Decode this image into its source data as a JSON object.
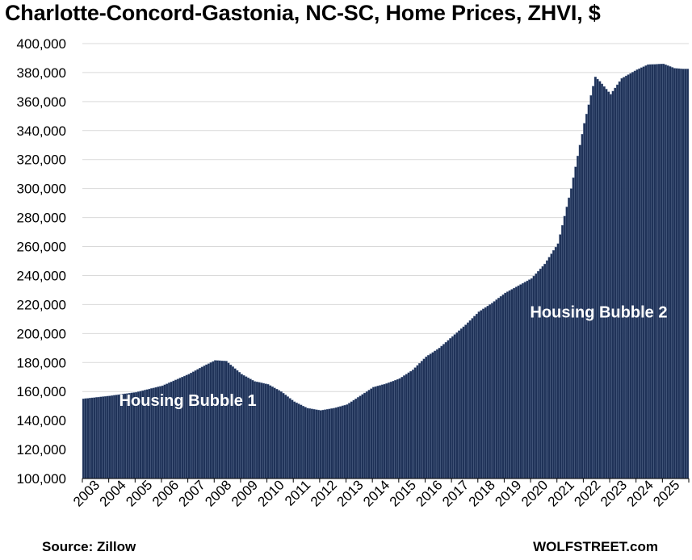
{
  "title": "Charlotte-Concord-Gastonia, NC-SC, Home Prices, ZHVI, $",
  "source": "Source: Zillow",
  "credit": "WOLFSTREET.com",
  "colors": {
    "bar": "#1f3258",
    "bar_gap": "#6a7ea0",
    "grid": "#d9d9d9"
  },
  "chart_data": {
    "type": "bar",
    "frequency": "monthly",
    "x_start": "2003-01",
    "x_end": "2025-12",
    "ylim": [
      100000,
      400000
    ],
    "yticks": [
      100000,
      120000,
      140000,
      160000,
      180000,
      200000,
      220000,
      240000,
      260000,
      280000,
      300000,
      320000,
      340000,
      360000,
      380000,
      400000
    ],
    "ytick_labels": [
      "100,000",
      "120,000",
      "140,000",
      "160,000",
      "180,000",
      "200,000",
      "220,000",
      "240,000",
      "260,000",
      "280,000",
      "300,000",
      "320,000",
      "340,000",
      "360,000",
      "380,000",
      "400,000"
    ],
    "xtick_labels": [
      "2003",
      "2004",
      "2005",
      "2006",
      "2007",
      "2008",
      "2009",
      "2010",
      "2011",
      "2012",
      "2013",
      "2014",
      "2015",
      "2016",
      "2017",
      "2018",
      "2019",
      "2020",
      "2021",
      "2022",
      "2023",
      "2024",
      "2025"
    ],
    "grid": "horizontal",
    "annotations": [
      {
        "text": "Housing Bubble 1",
        "x": "2007-01",
        "y": 150000
      },
      {
        "text": "Housing Bubble 2",
        "x": "2022-08",
        "y": 211000
      }
    ],
    "anchors": [
      [
        "2003-01",
        155000
      ],
      [
        "2004-01",
        157000
      ],
      [
        "2005-01",
        159500
      ],
      [
        "2006-01",
        164000
      ],
      [
        "2007-01",
        172000
      ],
      [
        "2007-07",
        177000
      ],
      [
        "2008-01",
        181500
      ],
      [
        "2008-06",
        181000
      ],
      [
        "2009-01",
        172000
      ],
      [
        "2009-07",
        167000
      ],
      [
        "2010-01",
        165000
      ],
      [
        "2010-07",
        160000
      ],
      [
        "2011-01",
        153000
      ],
      [
        "2011-07",
        148500
      ],
      [
        "2012-01",
        147000
      ],
      [
        "2012-07",
        148500
      ],
      [
        "2013-01",
        151000
      ],
      [
        "2013-07",
        157000
      ],
      [
        "2014-01",
        163000
      ],
      [
        "2014-07",
        165500
      ],
      [
        "2015-01",
        169000
      ],
      [
        "2015-07",
        175000
      ],
      [
        "2016-01",
        184000
      ],
      [
        "2016-07",
        190000
      ],
      [
        "2017-01",
        198000
      ],
      [
        "2017-07",
        206000
      ],
      [
        "2018-01",
        215000
      ],
      [
        "2018-07",
        221000
      ],
      [
        "2019-01",
        228000
      ],
      [
        "2019-07",
        233000
      ],
      [
        "2020-01",
        238000
      ],
      [
        "2020-07",
        248000
      ],
      [
        "2021-01",
        262000
      ],
      [
        "2021-07",
        300000
      ],
      [
        "2022-01",
        345000
      ],
      [
        "2022-06",
        377000
      ],
      [
        "2022-08",
        374000
      ],
      [
        "2023-01",
        365000
      ],
      [
        "2023-06",
        376000
      ],
      [
        "2024-01",
        382000
      ],
      [
        "2024-06",
        385500
      ],
      [
        "2025-01",
        386000
      ],
      [
        "2025-06",
        383000
      ],
      [
        "2025-10",
        382500
      ],
      [
        "2025-12",
        382500
      ]
    ]
  }
}
